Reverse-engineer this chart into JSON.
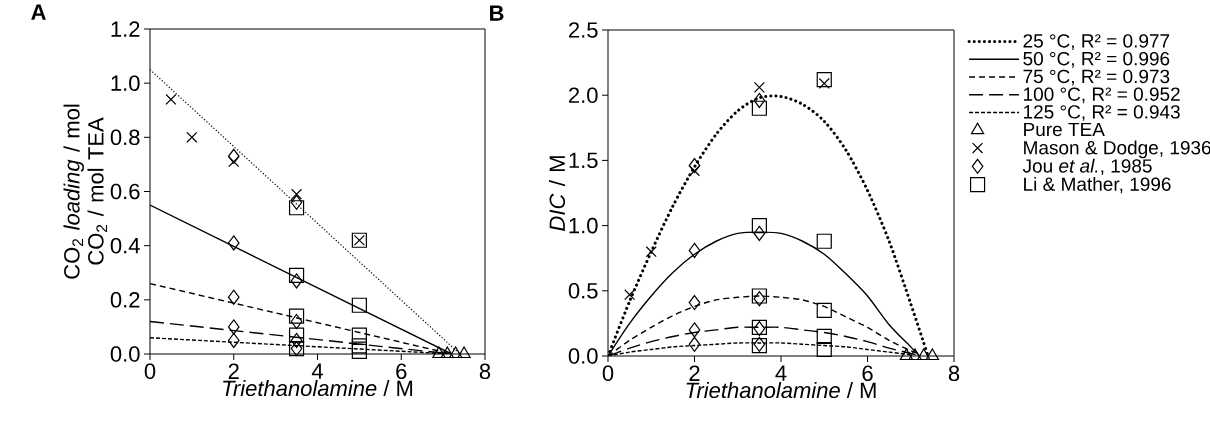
{
  "chart_data": [
    {
      "type": "line",
      "title": "A",
      "xlabel": "*Triethanolamine* / M",
      "ylabel": "CO$_{2}$ *loading* / mol CO$_{2}$ / mol TEA",
      "xlim": [
        0,
        8
      ],
      "ylim": [
        0,
        1.2
      ],
      "xticks": [
        0,
        2,
        4,
        6,
        8
      ],
      "yticks": [
        {
          "value": 0,
          "label": "0.0"
        },
        {
          "value": 0.2,
          "label": "0.2"
        },
        {
          "value": 0.4,
          "label": "0.4"
        },
        {
          "value": 0.6,
          "label": "0.6"
        },
        {
          "value": 0.8,
          "label": "0.8"
        },
        {
          "value": 1.0,
          "label": "1.0"
        },
        {
          "value": 1.2,
          "label": "1.2"
        }
      ],
      "grid": false,
      "legend": false,
      "series": [
        {
          "type": "line",
          "line_style": "dotted",
          "marker": "none",
          "color": "#000000",
          "x": [
            0,
            7.4
          ],
          "values": [
            1.05,
            0
          ]
        },
        {
          "type": "line",
          "line_style": "solid",
          "marker": "none",
          "color": "#000000",
          "x": [
            0,
            7.2
          ],
          "values": [
            0.55,
            0
          ]
        },
        {
          "type": "line",
          "line_style": "dashed",
          "marker": "none",
          "color": "#000000",
          "x": [
            0,
            7.2
          ],
          "values": [
            0.26,
            0
          ]
        },
        {
          "type": "line",
          "line_style": "dashed",
          "marker": "none",
          "color": "#000000",
          "x": [
            0,
            7.2
          ],
          "values": [
            0.12,
            0
          ]
        },
        {
          "type": "line",
          "line_style": "dashed",
          "marker": "none",
          "color": "#000000",
          "x": [
            0,
            7.2
          ],
          "values": [
            0.06,
            0
          ]
        },
        {
          "type": "scatter",
          "marker": "triangle",
          "color": "#000000",
          "x": [
            6.9,
            7.1,
            7.3,
            7.5
          ],
          "values": [
            0,
            0,
            0,
            0
          ]
        },
        {
          "type": "scatter",
          "marker": "cross",
          "color": "#000000",
          "x": [
            0.5,
            1,
            2,
            3.5,
            5
          ],
          "values": [
            0.94,
            0.8,
            0.71,
            0.59,
            0.42
          ]
        },
        {
          "type": "scatter",
          "marker": "diamond",
          "color": "#000000",
          "x": [
            2,
            3.5,
            2,
            3.5,
            2,
            3.5,
            2,
            3.5,
            2,
            3.5
          ],
          "values": [
            0.73,
            0.56,
            0.41,
            0.27,
            0.21,
            0.12,
            0.1,
            0.05,
            0.05,
            0.02
          ]
        },
        {
          "type": "scatter",
          "marker": "square",
          "color": "#000000",
          "x": [
            3.5,
            5,
            3.5,
            5,
            3.5,
            5,
            3.5,
            5,
            3.5,
            5
          ],
          "values": [
            0.54,
            0.42,
            0.29,
            0.18,
            0.14,
            0.07,
            0.07,
            0.03,
            0.02,
            0.01
          ]
        }
      ]
    },
    {
      "type": "line",
      "title": "B",
      "xlabel": "*Triethanolamine* / M",
      "ylabel": "*DIC* / M",
      "xlim": [
        0,
        8
      ],
      "ylim": [
        0,
        2.5
      ],
      "xticks": [
        0,
        2,
        4,
        6,
        8
      ],
      "yticks": [
        {
          "value": 0,
          "label": "0.0"
        },
        {
          "value": 0.5,
          "label": "0.5"
        },
        {
          "value": 1.0,
          "label": "1.0"
        },
        {
          "value": 1.5,
          "label": "1.5"
        },
        {
          "value": 2.0,
          "label": "2.0"
        },
        {
          "value": 2.5,
          "label": "2.5"
        }
      ],
      "grid": false,
      "legend": "right",
      "series": [
        {
          "type": "line",
          "name": "25 °C, R² = 0.977",
          "line_style": "dotted",
          "marker": "none",
          "color": "#000000",
          "x": [
            0,
            0.5,
            1,
            1.5,
            2,
            2.5,
            3,
            3.5,
            4,
            4.5,
            5,
            5.5,
            6,
            6.5,
            7,
            7.4
          ],
          "values": [
            0,
            0.42,
            0.8,
            1.15,
            1.45,
            1.7,
            1.88,
            1.98,
            1.99,
            1.93,
            1.8,
            1.58,
            1.27,
            0.88,
            0.4,
            0
          ]
        },
        {
          "type": "line",
          "name": "50 °C, R² = 0.996",
          "line_style": "solid",
          "marker": "none",
          "color": "#000000",
          "x": [
            0,
            0.5,
            1,
            1.5,
            2,
            2.5,
            3,
            3.5,
            4,
            4.5,
            5,
            5.5,
            6,
            6.5,
            7,
            7.2
          ],
          "values": [
            0,
            0.25,
            0.46,
            0.64,
            0.78,
            0.88,
            0.94,
            0.95,
            0.94,
            0.88,
            0.78,
            0.63,
            0.46,
            0.24,
            0.07,
            0
          ]
        },
        {
          "type": "line",
          "name": "75 °C, R² = 0.973",
          "line_style": "dashed",
          "marker": "none",
          "color": "#000000",
          "x": [
            0,
            0.5,
            1,
            1.5,
            2,
            2.5,
            3,
            3.5,
            4,
            4.5,
            5,
            5.5,
            6,
            6.5,
            7,
            7.2
          ],
          "values": [
            0,
            0.12,
            0.22,
            0.31,
            0.38,
            0.43,
            0.45,
            0.46,
            0.45,
            0.43,
            0.38,
            0.3,
            0.22,
            0.12,
            0.04,
            0.02
          ]
        },
        {
          "type": "line",
          "name": "100 °C, R² = 0.952",
          "line_style": "dashed",
          "marker": "none",
          "color": "#000000",
          "x": [
            0,
            0.5,
            1,
            1.5,
            2,
            2.5,
            3,
            3.5,
            4,
            4.5,
            5,
            5.5,
            6,
            6.5,
            7,
            7.2
          ],
          "values": [
            0,
            0.06,
            0.11,
            0.15,
            0.18,
            0.2,
            0.22,
            0.22,
            0.22,
            0.2,
            0.18,
            0.15,
            0.11,
            0.06,
            0.02,
            0
          ]
        },
        {
          "type": "line",
          "name": "125 °C, R² = 0.943",
          "line_style": "dashed",
          "marker": "none",
          "color": "#000000",
          "x": [
            0,
            0.5,
            1,
            1.5,
            2,
            2.5,
            3,
            3.5,
            4,
            4.5,
            5,
            5.5,
            6,
            6.5,
            7
          ],
          "values": [
            0,
            0.03,
            0.05,
            0.07,
            0.08,
            0.09,
            0.1,
            0.1,
            0.1,
            0.09,
            0.08,
            0.07,
            0.05,
            0.03,
            0.01
          ]
        },
        {
          "type": "scatter",
          "name": "Pure TEA",
          "marker": "triangle",
          "color": "#000000",
          "x": [
            6.9,
            7.1,
            7.3,
            7.5
          ],
          "values": [
            0,
            0,
            0,
            0
          ]
        },
        {
          "type": "scatter",
          "name": "Mason & Dodge, 1936",
          "marker": "cross",
          "color": "#000000",
          "x": [
            0.5,
            1,
            2,
            3.5,
            5
          ],
          "values": [
            0.47,
            0.8,
            1.42,
            2.06,
            2.09
          ]
        },
        {
          "type": "scatter",
          "name": "Jou *et al.*, 1985",
          "marker": "diamond",
          "color": "#000000",
          "x": [
            2,
            3.5,
            2,
            3.5,
            2,
            3.5,
            2,
            3.5,
            2,
            3.5
          ],
          "values": [
            1.46,
            1.96,
            0.81,
            0.94,
            0.41,
            0.44,
            0.2,
            0.21,
            0.09,
            0.09
          ]
        },
        {
          "type": "scatter",
          "name": "Li & Mather, 1996",
          "marker": "square",
          "color": "#000000",
          "x": [
            3.5,
            5,
            3.5,
            5,
            3.5,
            5,
            3.5,
            5,
            3.5,
            5
          ],
          "values": [
            1.9,
            2.12,
            1.0,
            0.88,
            0.46,
            0.35,
            0.22,
            0.15,
            0.08,
            0.05
          ]
        }
      ]
    }
  ]
}
